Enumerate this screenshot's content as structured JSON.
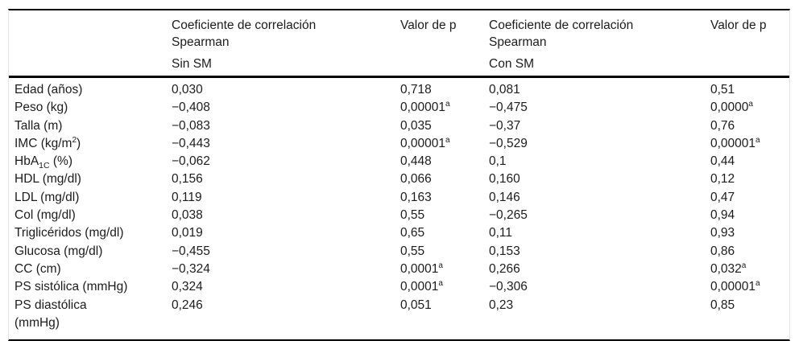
{
  "colors": {
    "rule": "#000000",
    "side_border": "#e5e5e5",
    "text": "#1c1c1c",
    "background": "#ffffff"
  },
  "table": {
    "columns": [
      {
        "key": "label",
        "header": null
      },
      {
        "key": "coef_sin",
        "header": {
          "lines": [
            "Coeficiente de correlación",
            "Spearman"
          ],
          "group": "Sin SM"
        }
      },
      {
        "key": "p_sin",
        "header": {
          "lines": [
            "Valor de p"
          ],
          "group": null
        }
      },
      {
        "key": "coef_con",
        "header": {
          "lines": [
            "Coeficiente de correlación",
            "Spearman"
          ],
          "group": "Con SM"
        }
      },
      {
        "key": "p_con",
        "header": {
          "lines": [
            "Valor de p"
          ],
          "group": null
        }
      }
    ],
    "rows": [
      {
        "label": [
          [
            "t",
            "Edad (años)"
          ]
        ],
        "coef_sin": [
          [
            "t",
            "0,030"
          ]
        ],
        "p_sin": [
          [
            "t",
            "0,718"
          ]
        ],
        "coef_con": [
          [
            "t",
            "0,081"
          ]
        ],
        "p_con": [
          [
            "t",
            "0,51"
          ]
        ]
      },
      {
        "label": [
          [
            "t",
            "Peso (kg)"
          ]
        ],
        "coef_sin": [
          [
            "t",
            "−0,408"
          ]
        ],
        "p_sin": [
          [
            "t",
            "0,00001"
          ],
          [
            "sup",
            "a"
          ]
        ],
        "coef_con": [
          [
            "t",
            "−0,475"
          ]
        ],
        "p_con": [
          [
            "t",
            "0,0000"
          ],
          [
            "sup",
            "a"
          ]
        ]
      },
      {
        "label": [
          [
            "t",
            "Talla (m)"
          ]
        ],
        "coef_sin": [
          [
            "t",
            "−0,083"
          ]
        ],
        "p_sin": [
          [
            "t",
            "0,035"
          ]
        ],
        "coef_con": [
          [
            "t",
            "−0,37"
          ]
        ],
        "p_con": [
          [
            "t",
            "0,76"
          ]
        ]
      },
      {
        "label": [
          [
            "t",
            "IMC (kg/m"
          ],
          [
            "sup",
            "2"
          ],
          [
            "t",
            ")"
          ]
        ],
        "coef_sin": [
          [
            "t",
            "−0,443"
          ]
        ],
        "p_sin": [
          [
            "t",
            "0,00001"
          ],
          [
            "sup",
            "a"
          ]
        ],
        "coef_con": [
          [
            "t",
            "−0,529"
          ]
        ],
        "p_con": [
          [
            "t",
            "0,00001"
          ],
          [
            "sup",
            "a"
          ]
        ]
      },
      {
        "label": [
          [
            "t",
            "HbA"
          ],
          [
            "sub",
            "1C"
          ],
          [
            "t",
            " (%)"
          ]
        ],
        "coef_sin": [
          [
            "t",
            "−0,062"
          ]
        ],
        "p_sin": [
          [
            "t",
            "0,448"
          ]
        ],
        "coef_con": [
          [
            "t",
            "0,1"
          ]
        ],
        "p_con": [
          [
            "t",
            "0,44"
          ]
        ]
      },
      {
        "label": [
          [
            "t",
            "HDL (mg/dl)"
          ]
        ],
        "coef_sin": [
          [
            "t",
            "0,156"
          ]
        ],
        "p_sin": [
          [
            "t",
            "0,066"
          ]
        ],
        "coef_con": [
          [
            "t",
            "0,160"
          ]
        ],
        "p_con": [
          [
            "t",
            "0,12"
          ]
        ]
      },
      {
        "label": [
          [
            "t",
            "LDL (mg/dl)"
          ]
        ],
        "coef_sin": [
          [
            "t",
            "0,119"
          ]
        ],
        "p_sin": [
          [
            "t",
            "0,163"
          ]
        ],
        "coef_con": [
          [
            "t",
            "0,146"
          ]
        ],
        "p_con": [
          [
            "t",
            "0,47"
          ]
        ]
      },
      {
        "label": [
          [
            "t",
            "Col (mg/dl)"
          ]
        ],
        "coef_sin": [
          [
            "t",
            "0,038"
          ]
        ],
        "p_sin": [
          [
            "t",
            "0,55"
          ]
        ],
        "coef_con": [
          [
            "t",
            "−0,265"
          ]
        ],
        "p_con": [
          [
            "t",
            "0,94"
          ]
        ]
      },
      {
        "label": [
          [
            "t",
            "Triglicéridos (mg/dl)"
          ]
        ],
        "coef_sin": [
          [
            "t",
            "0,019"
          ]
        ],
        "p_sin": [
          [
            "t",
            "0,65"
          ]
        ],
        "coef_con": [
          [
            "t",
            "0,11"
          ]
        ],
        "p_con": [
          [
            "t",
            "0,93"
          ]
        ]
      },
      {
        "label": [
          [
            "t",
            "Glucosa (mg/dl)"
          ]
        ],
        "coef_sin": [
          [
            "t",
            "−0,455"
          ]
        ],
        "p_sin": [
          [
            "t",
            "0,55"
          ]
        ],
        "coef_con": [
          [
            "t",
            "0,153"
          ]
        ],
        "p_con": [
          [
            "t",
            "0,86"
          ]
        ]
      },
      {
        "label": [
          [
            "t",
            "CC (cm)"
          ]
        ],
        "coef_sin": [
          [
            "t",
            "−0,324"
          ]
        ],
        "p_sin": [
          [
            "t",
            "0,0001"
          ],
          [
            "sup",
            "a"
          ]
        ],
        "coef_con": [
          [
            "t",
            "0,266"
          ]
        ],
        "p_con": [
          [
            "t",
            "0,032"
          ],
          [
            "sup",
            "a"
          ]
        ]
      },
      {
        "label": [
          [
            "t",
            "PS sistólica (mmHg)"
          ]
        ],
        "coef_sin": [
          [
            "t",
            "0,324"
          ]
        ],
        "p_sin": [
          [
            "t",
            "0,0001"
          ],
          [
            "sup",
            "a"
          ]
        ],
        "coef_con": [
          [
            "t",
            "−0,306"
          ]
        ],
        "p_con": [
          [
            "t",
            "0,00001"
          ],
          [
            "sup",
            "a"
          ]
        ]
      },
      {
        "label": [
          [
            "t",
            "PS diastólica"
          ],
          [
            "br",
            ""
          ],
          [
            "t",
            "(mmHg)"
          ]
        ],
        "coef_sin": [
          [
            "t",
            "0,246"
          ]
        ],
        "p_sin": [
          [
            "t",
            "0,051"
          ]
        ],
        "coef_con": [
          [
            "t",
            "0,23"
          ]
        ],
        "p_con": [
          [
            "t",
            "0,85"
          ]
        ]
      }
    ]
  }
}
